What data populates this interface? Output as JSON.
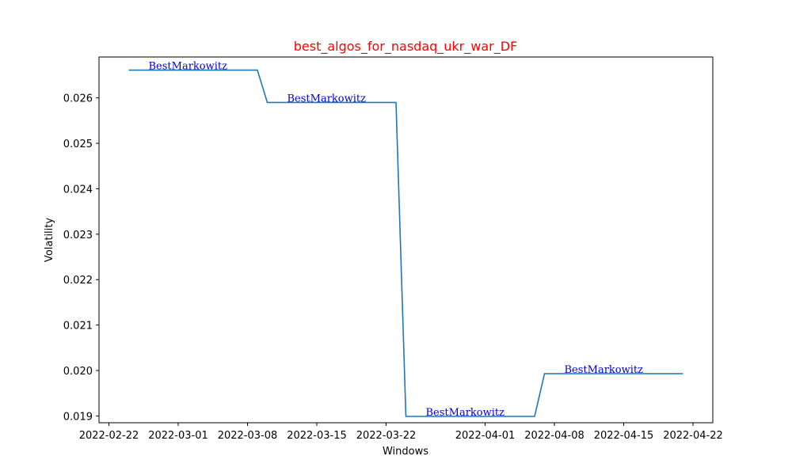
{
  "chart_data": {
    "type": "line",
    "title": "best_algos_for_nasdaq_ukr_war_DF",
    "title_color": "#ff0000",
    "xlabel": "Windows",
    "ylabel": "Volatility",
    "line_color": "#1f77b4",
    "annotation_color": "#0000cc",
    "xlim": [
      "2022-02-21",
      "2022-04-24"
    ],
    "ylim": [
      0.01885,
      0.0269
    ],
    "x_ticks": [
      "2022-02-22",
      "2022-03-01",
      "2022-03-08",
      "2022-03-15",
      "2022-03-22",
      "2022-04-01",
      "2022-04-08",
      "2022-04-15",
      "2022-04-22"
    ],
    "y_ticks": [
      0.019,
      0.02,
      0.021,
      0.022,
      0.023,
      0.024,
      0.025,
      0.026
    ],
    "y_tick_labels": [
      "0.019",
      "0.020",
      "0.021",
      "0.022",
      "0.023",
      "0.024",
      "0.025",
      "0.026"
    ],
    "grid": false,
    "series": [
      {
        "x": [
          "2022-02-24",
          "2022-03-09",
          "2022-03-10",
          "2022-03-23",
          "2022-03-24",
          "2022-04-06",
          "2022-04-07",
          "2022-04-21"
        ],
        "values": [
          0.02661,
          0.02661,
          0.0259,
          0.0259,
          0.01899,
          0.01899,
          0.01993,
          0.01993
        ]
      }
    ],
    "annotations": [
      {
        "text": "BestMarkowitz",
        "x": "2022-02-26",
        "y": 0.02661
      },
      {
        "text": "BestMarkowitz",
        "x": "2022-03-12",
        "y": 0.0259
      },
      {
        "text": "BestMarkowitz",
        "x": "2022-03-26",
        "y": 0.01899
      },
      {
        "text": "BestMarkowitz",
        "x": "2022-04-09",
        "y": 0.01993
      }
    ]
  }
}
